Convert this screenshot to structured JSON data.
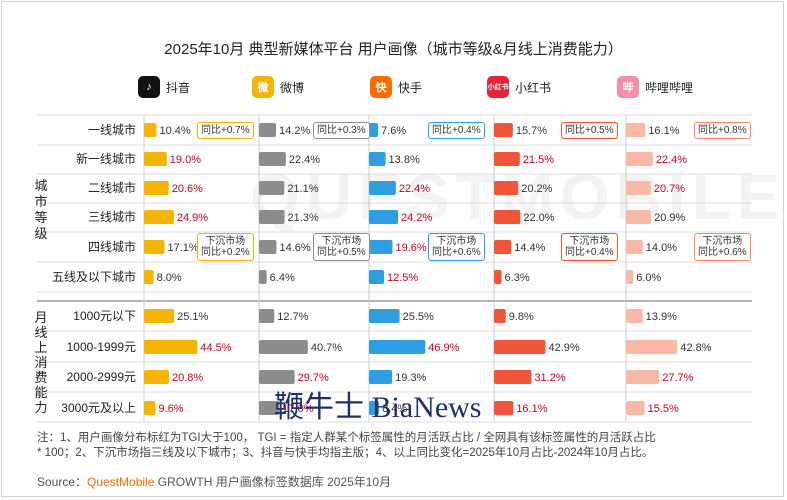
{
  "title": "2025年10月 典型新媒体平台 用户画像（城市等级&月线上消费能力）",
  "platforms": [
    {
      "name": "抖音",
      "logo_text": "♪",
      "color": "#f5b400",
      "logo_bg": "#111111"
    },
    {
      "name": "微博",
      "logo_text": "微",
      "color": "#8c8c8c",
      "logo_bg": "#f5b400"
    },
    {
      "name": "快手",
      "logo_text": "快",
      "color": "#2e9ee0",
      "logo_bg": "#ff6a00"
    },
    {
      "name": "小红书",
      "logo_text": "小红书",
      "color": "#f0553a",
      "logo_bg": "#e8243a"
    },
    {
      "name": "哔哩哔哩",
      "logo_text": "哔",
      "color": "#f9b9a6",
      "logo_bg": "#f58fa5"
    }
  ],
  "groups": {
    "city": "城市等级",
    "spend": "月线上消费能力"
  },
  "chart_data": {
    "type": "bar",
    "categories_city": [
      "一线城市",
      "新一线城市",
      "二线城市",
      "三线城市",
      "四线城市",
      "五线及以下城市"
    ],
    "categories_spend": [
      "1000元以下",
      "1000-1999元",
      "2000-2999元",
      "3000元及以上"
    ],
    "series": [
      {
        "name": "抖音",
        "city": [
          10.4,
          19.0,
          20.6,
          24.9,
          17.1,
          8.0
        ],
        "spend": [
          25.1,
          44.5,
          20.8,
          9.6
        ]
      },
      {
        "name": "微博",
        "city": [
          14.2,
          22.4,
          21.1,
          21.3,
          14.6,
          6.4
        ],
        "spend": [
          12.7,
          40.7,
          29.7,
          17.0
        ]
      },
      {
        "name": "快手",
        "city": [
          7.6,
          13.8,
          22.4,
          24.2,
          19.6,
          12.5
        ],
        "spend": [
          25.5,
          46.9,
          19.3,
          8.4
        ]
      },
      {
        "name": "小红书",
        "city": [
          15.7,
          21.5,
          20.2,
          22.0,
          14.4,
          6.3
        ],
        "spend": [
          9.8,
          42.9,
          31.2,
          16.1
        ]
      },
      {
        "name": "哔哩哔哩",
        "city": [
          16.1,
          22.4,
          20.7,
          20.9,
          14.0,
          6.0
        ],
        "spend": [
          13.9,
          42.8,
          27.7,
          15.5
        ]
      }
    ],
    "value_labels_city": [
      [
        "10.4%",
        "19.0%",
        "20.6%",
        "24.9%",
        "17.1%",
        "8.0%"
      ],
      [
        "14.2%",
        "22.4%",
        "21.1%",
        "21.3%",
        "14.6%",
        "6.4%"
      ],
      [
        "7.6%",
        "13.8%",
        "22.4%",
        "24.2%",
        "19.6%",
        "12.5%"
      ],
      [
        "15.7%",
        "21.5%",
        "20.2%",
        "22.0%",
        "14.4%",
        "6.3%"
      ],
      [
        "16.1%",
        "22.4%",
        "20.7%",
        "20.9%",
        "14.0%",
        "6.0%"
      ]
    ],
    "value_labels_spend": [
      [
        "25.1%",
        "44.5%",
        "20.8%",
        "9.6%"
      ],
      [
        "12.7%",
        "40.7%",
        "29.7%",
        "17.0%"
      ],
      [
        "25.5%",
        "46.9%",
        "19.3%",
        "8.4%"
      ],
      [
        "9.8%",
        "42.9%",
        "31.2%",
        "16.1%"
      ],
      [
        "13.9%",
        "42.8%",
        "27.7%",
        "15.5%"
      ]
    ],
    "highlight_city": [
      [
        false,
        true,
        true,
        true,
        false,
        false
      ],
      [
        false,
        false,
        false,
        false,
        false,
        false
      ],
      [
        false,
        false,
        true,
        true,
        true,
        true
      ],
      [
        false,
        true,
        false,
        false,
        false,
        false
      ],
      [
        false,
        true,
        true,
        false,
        false,
        false
      ]
    ],
    "highlight_spend": [
      [
        false,
        true,
        true,
        true
      ],
      [
        false,
        false,
        true,
        true
      ],
      [
        false,
        true,
        false,
        false
      ],
      [
        false,
        false,
        true,
        true
      ],
      [
        false,
        false,
        true,
        true
      ]
    ],
    "yoy_badges": [
      {
        "platform": 0,
        "row": 0,
        "lines": [
          "同比+0.7%"
        ]
      },
      {
        "platform": 1,
        "row": 0,
        "lines": [
          "同比+0.3%"
        ]
      },
      {
        "platform": 2,
        "row": 0,
        "lines": [
          "同比+0.4%"
        ]
      },
      {
        "platform": 3,
        "row": 0,
        "lines": [
          "同比+0.5%"
        ]
      },
      {
        "platform": 4,
        "row": 0,
        "lines": [
          "同比+0.8%"
        ]
      },
      {
        "platform": 0,
        "row": 4,
        "lines": [
          "下沉市场",
          "同比+0.2%"
        ]
      },
      {
        "platform": 1,
        "row": 4,
        "lines": [
          "下沉市场",
          "同比+0.5%"
        ]
      },
      {
        "platform": 2,
        "row": 4,
        "lines": [
          "下沉市场",
          "同比+0.6%"
        ]
      },
      {
        "platform": 3,
        "row": 4,
        "lines": [
          "下沉市场",
          "同比+0.4%"
        ]
      },
      {
        "platform": 4,
        "row": 4,
        "lines": [
          "下沉市场",
          "同比+0.6%"
        ]
      }
    ],
    "xlim": [
      0,
      50
    ],
    "highlight_color": "#d0021b"
  },
  "notes": {
    "line1": "注：1、用户画像分布标红为TGI大于100， TGI = 指定人群某个标签属性的月活跃占比 / 全网具有该标签属性的月活跃占比",
    "line2": "* 100；2、下沉市场指三线及以下城市；3、抖音与快手均指主版；4、以上同比变化=2025年10月占比-2024年10月占比。"
  },
  "source": {
    "prefix": "Source：",
    "brand": "QuestMobile",
    "rest": " GROWTH 用户画像标签数据库 2025年10月"
  },
  "watermark": {
    "text": "QUESTMOBILE",
    "overlay": "鞭牛士 BiaNews"
  }
}
